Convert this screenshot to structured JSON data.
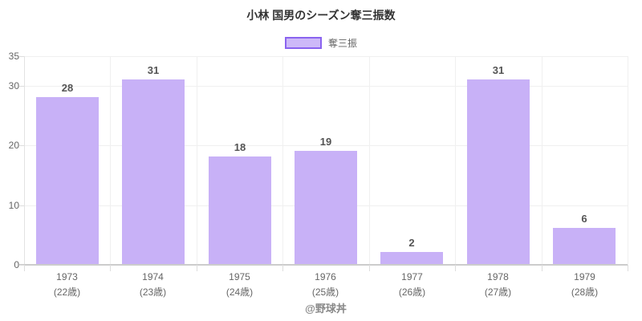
{
  "title": "小林 国男のシーズン奪三振数",
  "legend": {
    "label": "奪三振"
  },
  "footer": "@野球丼",
  "colors": {
    "bar_fill": "#c8b1f7",
    "legend_fill": "#cdb9f8",
    "legend_border": "#8a63ef",
    "gridline": "#f0f0f0",
    "axis": "#cccccc",
    "tick_label": "#666666",
    "value_label": "#545454",
    "title_color": "#333333"
  },
  "chart_data": {
    "type": "bar",
    "title": "小林 国男のシーズン奪三振数",
    "categories": [
      "1973",
      "1974",
      "1975",
      "1976",
      "1977",
      "1978",
      "1979"
    ],
    "category_sublabels": [
      "(22歳)",
      "(23歳)",
      "(24歳)",
      "(25歳)",
      "(26歳)",
      "(27歳)",
      "(28歳)"
    ],
    "series": [
      {
        "name": "奪三振",
        "values": [
          28,
          31,
          18,
          19,
          2,
          31,
          6
        ]
      }
    ],
    "xlabel": "",
    "ylabel": "",
    "ylim": [
      0,
      35
    ],
    "yticks": [
      0,
      10,
      20,
      30,
      35
    ],
    "grid": true,
    "legend_position": "top",
    "value_labels": true
  }
}
